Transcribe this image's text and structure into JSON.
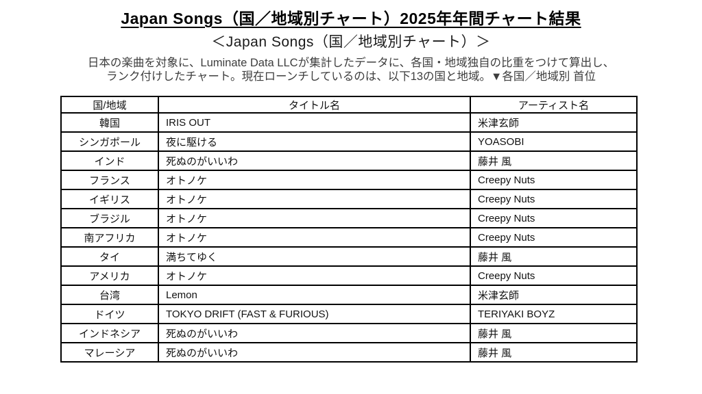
{
  "page": {
    "title": "Japan Songs（国／地域別チャート）2025年年間チャート結果",
    "subtitle": "＜Japan Songs（国／地域別チャート）＞",
    "description_line1": "日本の楽曲を対象に、Luminate Data LLCが集計したデータに、各国・地域独自の比重をつけて算出し、",
    "description_line2": "ランク付けしたチャート。現在ローンチしているのは、以下13の国と地域。▼各国／地域別 首位"
  },
  "table": {
    "headers": {
      "country": "国/地域",
      "title": "タイトル名",
      "artist": "アーティスト名"
    },
    "rows": [
      {
        "country": "韓国",
        "title": "IRIS OUT",
        "artist": "米津玄師"
      },
      {
        "country": "シンガポール",
        "title": "夜に駆ける",
        "artist": "YOASOBI"
      },
      {
        "country": "インド",
        "title": "死ぬのがいいわ",
        "artist": "藤井 風"
      },
      {
        "country": "フランス",
        "title": "オトノケ",
        "artist": "Creepy Nuts"
      },
      {
        "country": "イギリス",
        "title": "オトノケ",
        "artist": "Creepy Nuts"
      },
      {
        "country": "ブラジル",
        "title": "オトノケ",
        "artist": "Creepy Nuts"
      },
      {
        "country": "南アフリカ",
        "title": "オトノケ",
        "artist": "Creepy Nuts"
      },
      {
        "country": "タイ",
        "title": "満ちてゆく",
        "artist": "藤井 風"
      },
      {
        "country": "アメリカ",
        "title": "オトノケ",
        "artist": "Creepy Nuts"
      },
      {
        "country": "台湾",
        "title": "Lemon",
        "artist": "米津玄師"
      },
      {
        "country": "ドイツ",
        "title": "TOKYO DRIFT (FAST & FURIOUS)",
        "artist": "TERIYAKI BOYZ"
      },
      {
        "country": "インドネシア",
        "title": "死ぬのがいいわ",
        "artist": "藤井 風"
      },
      {
        "country": "マレーシア",
        "title": "死ぬのがいいわ",
        "artist": "藤井 風"
      }
    ]
  },
  "colors": {
    "background": "#ffffff",
    "text": "#000000",
    "border": "#000000"
  }
}
